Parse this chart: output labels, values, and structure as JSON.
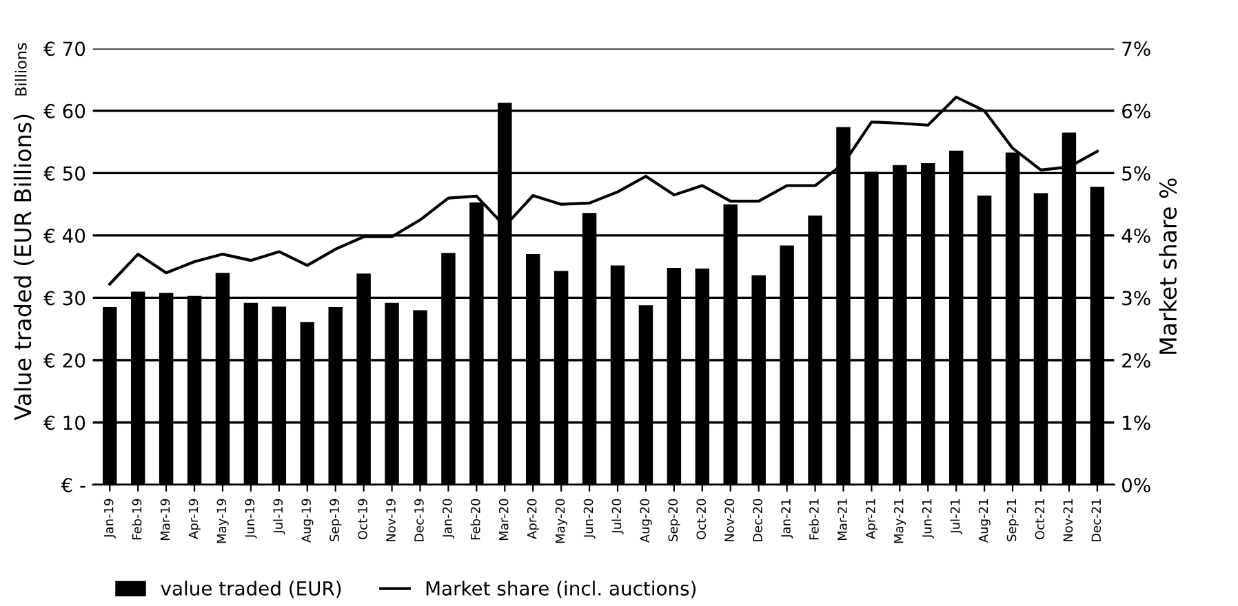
{
  "chart_data": {
    "type": "bar",
    "categories": [
      "Jan-19",
      "Feb-19",
      "Mar-19",
      "Apr-19",
      "May-19",
      "Jun-19",
      "Jul-19",
      "Aug-19",
      "Sep-19",
      "Oct-19",
      "Nov-19",
      "Dec-19",
      "Jan-20",
      "Feb-20",
      "Mar-20",
      "Apr-20",
      "May-20",
      "Jun-20",
      "Jul-20",
      "Aug-20",
      "Sep-20",
      "Oct-20",
      "Nov-20",
      "Dec-20",
      "Jan-21",
      "Feb-21",
      "Mar-21",
      "Apr-21",
      "May-21",
      "Jun-21",
      "Jul-21",
      "Aug-21",
      "Sep-21",
      "Oct-21",
      "Nov-21",
      "Dec-21"
    ],
    "series": [
      {
        "name": "value traded (EUR)",
        "color": "#000000",
        "values": [
          28.5,
          31,
          30.8,
          30.3,
          34,
          29.2,
          28.6,
          26.1,
          28.5,
          33.9,
          29.2,
          28,
          37.2,
          45.3,
          61.3,
          37,
          34.3,
          43.6,
          35.2,
          28.8,
          34.8,
          34.7,
          45,
          33.6,
          38.4,
          43.2,
          57.4,
          50.2,
          51.3,
          51.6,
          53.6,
          46.4,
          53.3,
          46.8,
          56.5,
          47.8
        ]
      },
      {
        "name": "Market share (incl. auctions)",
        "type": "line",
        "axis": "y2",
        "color": "#000000",
        "values": [
          3.22,
          3.7,
          3.4,
          3.58,
          3.7,
          3.6,
          3.74,
          3.52,
          3.78,
          3.98,
          3.98,
          4.25,
          4.6,
          4.63,
          4.15,
          4.64,
          4.5,
          4.52,
          4.7,
          4.95,
          4.65,
          4.8,
          4.55,
          4.55,
          4.8,
          4.8,
          5.15,
          5.82,
          5.8,
          5.77,
          6.22,
          6.0,
          5.4,
          5.05,
          5.1,
          5.35
        ]
      }
    ],
    "ylabel": "Value traded (EUR Billions)",
    "y2label": "Market share %",
    "annotations": [
      "Billions"
    ],
    "ylim": [
      0,
      70
    ],
    "yticks": [
      {
        "value": 0,
        "label": "€ -"
      },
      {
        "value": 10,
        "label": "€ 10"
      },
      {
        "value": 20,
        "label": "€ 20"
      },
      {
        "value": 30,
        "label": "€ 30"
      },
      {
        "value": 40,
        "label": "€ 40"
      },
      {
        "value": 50,
        "label": "€ 50"
      },
      {
        "value": 60,
        "label": "€ 60"
      },
      {
        "value": 70,
        "label": "€ 70"
      }
    ],
    "y2lim": [
      0,
      7
    ],
    "y2ticks": [
      {
        "value": 0,
        "label": "0%"
      },
      {
        "value": 1,
        "label": "1%"
      },
      {
        "value": 2,
        "label": "2%"
      },
      {
        "value": 3,
        "label": "3%"
      },
      {
        "value": 4,
        "label": "4%"
      },
      {
        "value": 5,
        "label": "5%"
      },
      {
        "value": 6,
        "label": "6%"
      },
      {
        "value": 7,
        "label": "7%"
      }
    ],
    "grid": "y",
    "legend": "bottom",
    "line_style": "solid",
    "marker": "none"
  }
}
